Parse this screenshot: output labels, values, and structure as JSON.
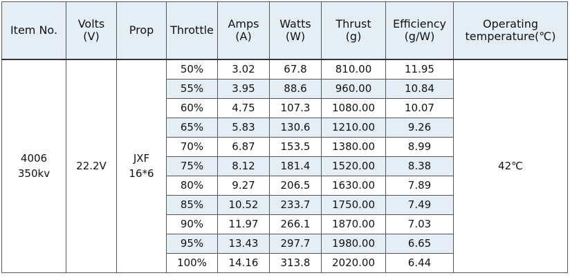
{
  "headers": [
    {
      "line1": "Item No.",
      "line2": ""
    },
    {
      "line1": "Volts",
      "line2": "(V)"
    },
    {
      "line1": "Prop",
      "line2": ""
    },
    {
      "line1": "Throttle",
      "line2": ""
    },
    {
      "line1": "Amps",
      "line2": "(A)"
    },
    {
      "line1": "Watts",
      "line2": "(W)"
    },
    {
      "line1": "Thrust",
      "line2": "(g)"
    },
    {
      "line1": "Efficiency",
      "line2": "(g/W)"
    },
    {
      "line1": "Operating",
      "line2": "temperature(℃)"
    }
  ],
  "merged": {
    "item_no_line1": "4006",
    "item_no_line2": "350kv",
    "volts": "22.2V",
    "prop_line1": "JXF",
    "prop_line2": "16*6",
    "operating_temperature": "42℃"
  },
  "rows": [
    {
      "throttle": "50%",
      "amps": "3.02",
      "watts": "67.8",
      "thrust": "810.00",
      "efficiency": "11.95"
    },
    {
      "throttle": "55%",
      "amps": "3.95",
      "watts": "88.6",
      "thrust": "960.00",
      "efficiency": "10.84"
    },
    {
      "throttle": "60%",
      "amps": "4.75",
      "watts": "107.3",
      "thrust": "1080.00",
      "efficiency": "10.07"
    },
    {
      "throttle": "65%",
      "amps": "5.83",
      "watts": "130.6",
      "thrust": "1210.00",
      "efficiency": "9.26"
    },
    {
      "throttle": "70%",
      "amps": "6.87",
      "watts": "153.5",
      "thrust": "1380.00",
      "efficiency": "8.99"
    },
    {
      "throttle": "75%",
      "amps": "8.12",
      "watts": "181.4",
      "thrust": "1520.00",
      "efficiency": "8.38"
    },
    {
      "throttle": "80%",
      "amps": "9.27",
      "watts": "206.5",
      "thrust": "1630.00",
      "efficiency": "7.89"
    },
    {
      "throttle": "85%",
      "amps": "10.52",
      "watts": "233.7",
      "thrust": "1750.00",
      "efficiency": "7.49"
    },
    {
      "throttle": "90%",
      "amps": "11.97",
      "watts": "266.1",
      "thrust": "1870.00",
      "efficiency": "7.03"
    },
    {
      "throttle": "95%",
      "amps": "13.43",
      "watts": "297.7",
      "thrust": "1980.00",
      "efficiency": "6.65"
    },
    {
      "throttle": "100%",
      "amps": "14.16",
      "watts": "313.8",
      "thrust": "2020.00",
      "efficiency": "6.44"
    }
  ],
  "colors": {
    "header_fill": "#e4eef4",
    "row_stripe": "#e4eef4",
    "border": "#555555"
  }
}
